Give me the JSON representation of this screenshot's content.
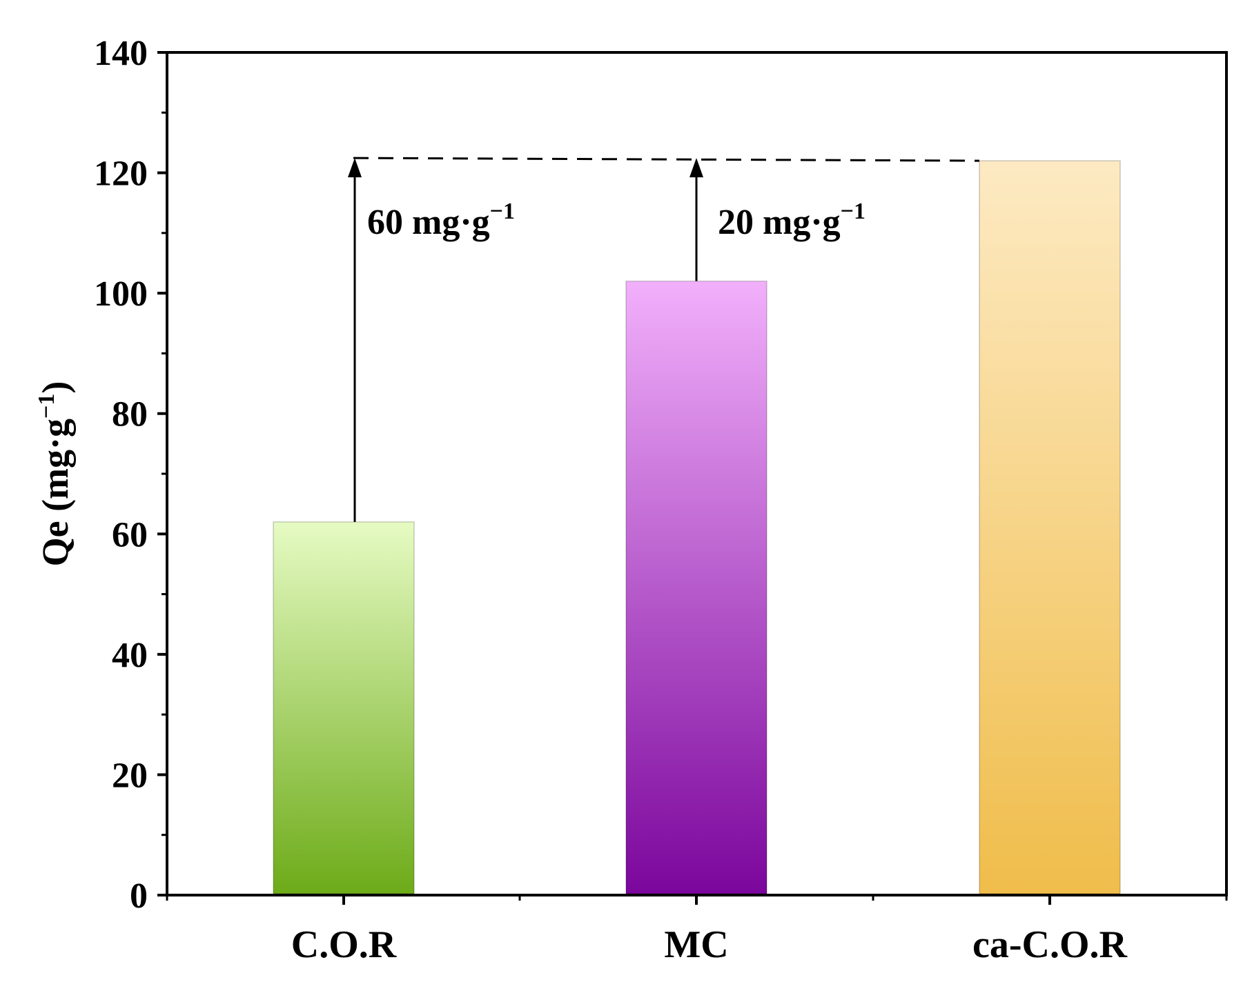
{
  "chart_data": {
    "type": "bar",
    "categories": [
      "C.O.R",
      "MC",
      "ca-C.O.R"
    ],
    "values": [
      62,
      102,
      122
    ],
    "colors": {
      "C.O.R": {
        "top": "#e6fbc3",
        "bottom": "#6dab19"
      },
      "MC": {
        "top": "#f2b0fb",
        "bottom": "#7b069c"
      },
      "ca-C.O.R": {
        "top": "#fdeac3",
        "bottom": "#f0bd4b"
      }
    },
    "xlabel": "",
    "ylabel": {
      "main": "Qe (mg·g",
      "sup": "−1",
      "close": ")"
    },
    "ylim": [
      0,
      140
    ],
    "yticks": [
      0,
      20,
      40,
      60,
      80,
      100,
      120,
      140
    ],
    "y_minor_step": 10,
    "grid": false,
    "reference_line_value": 122,
    "annotations": [
      {
        "from_category": "C.O.R",
        "from_value": 62,
        "to_value": 122,
        "text": "60 mg·g",
        "sup": "−1"
      },
      {
        "from_category": "MC",
        "from_value": 102,
        "to_value": 122,
        "text": "20 mg·g",
        "sup": "−1"
      }
    ]
  }
}
